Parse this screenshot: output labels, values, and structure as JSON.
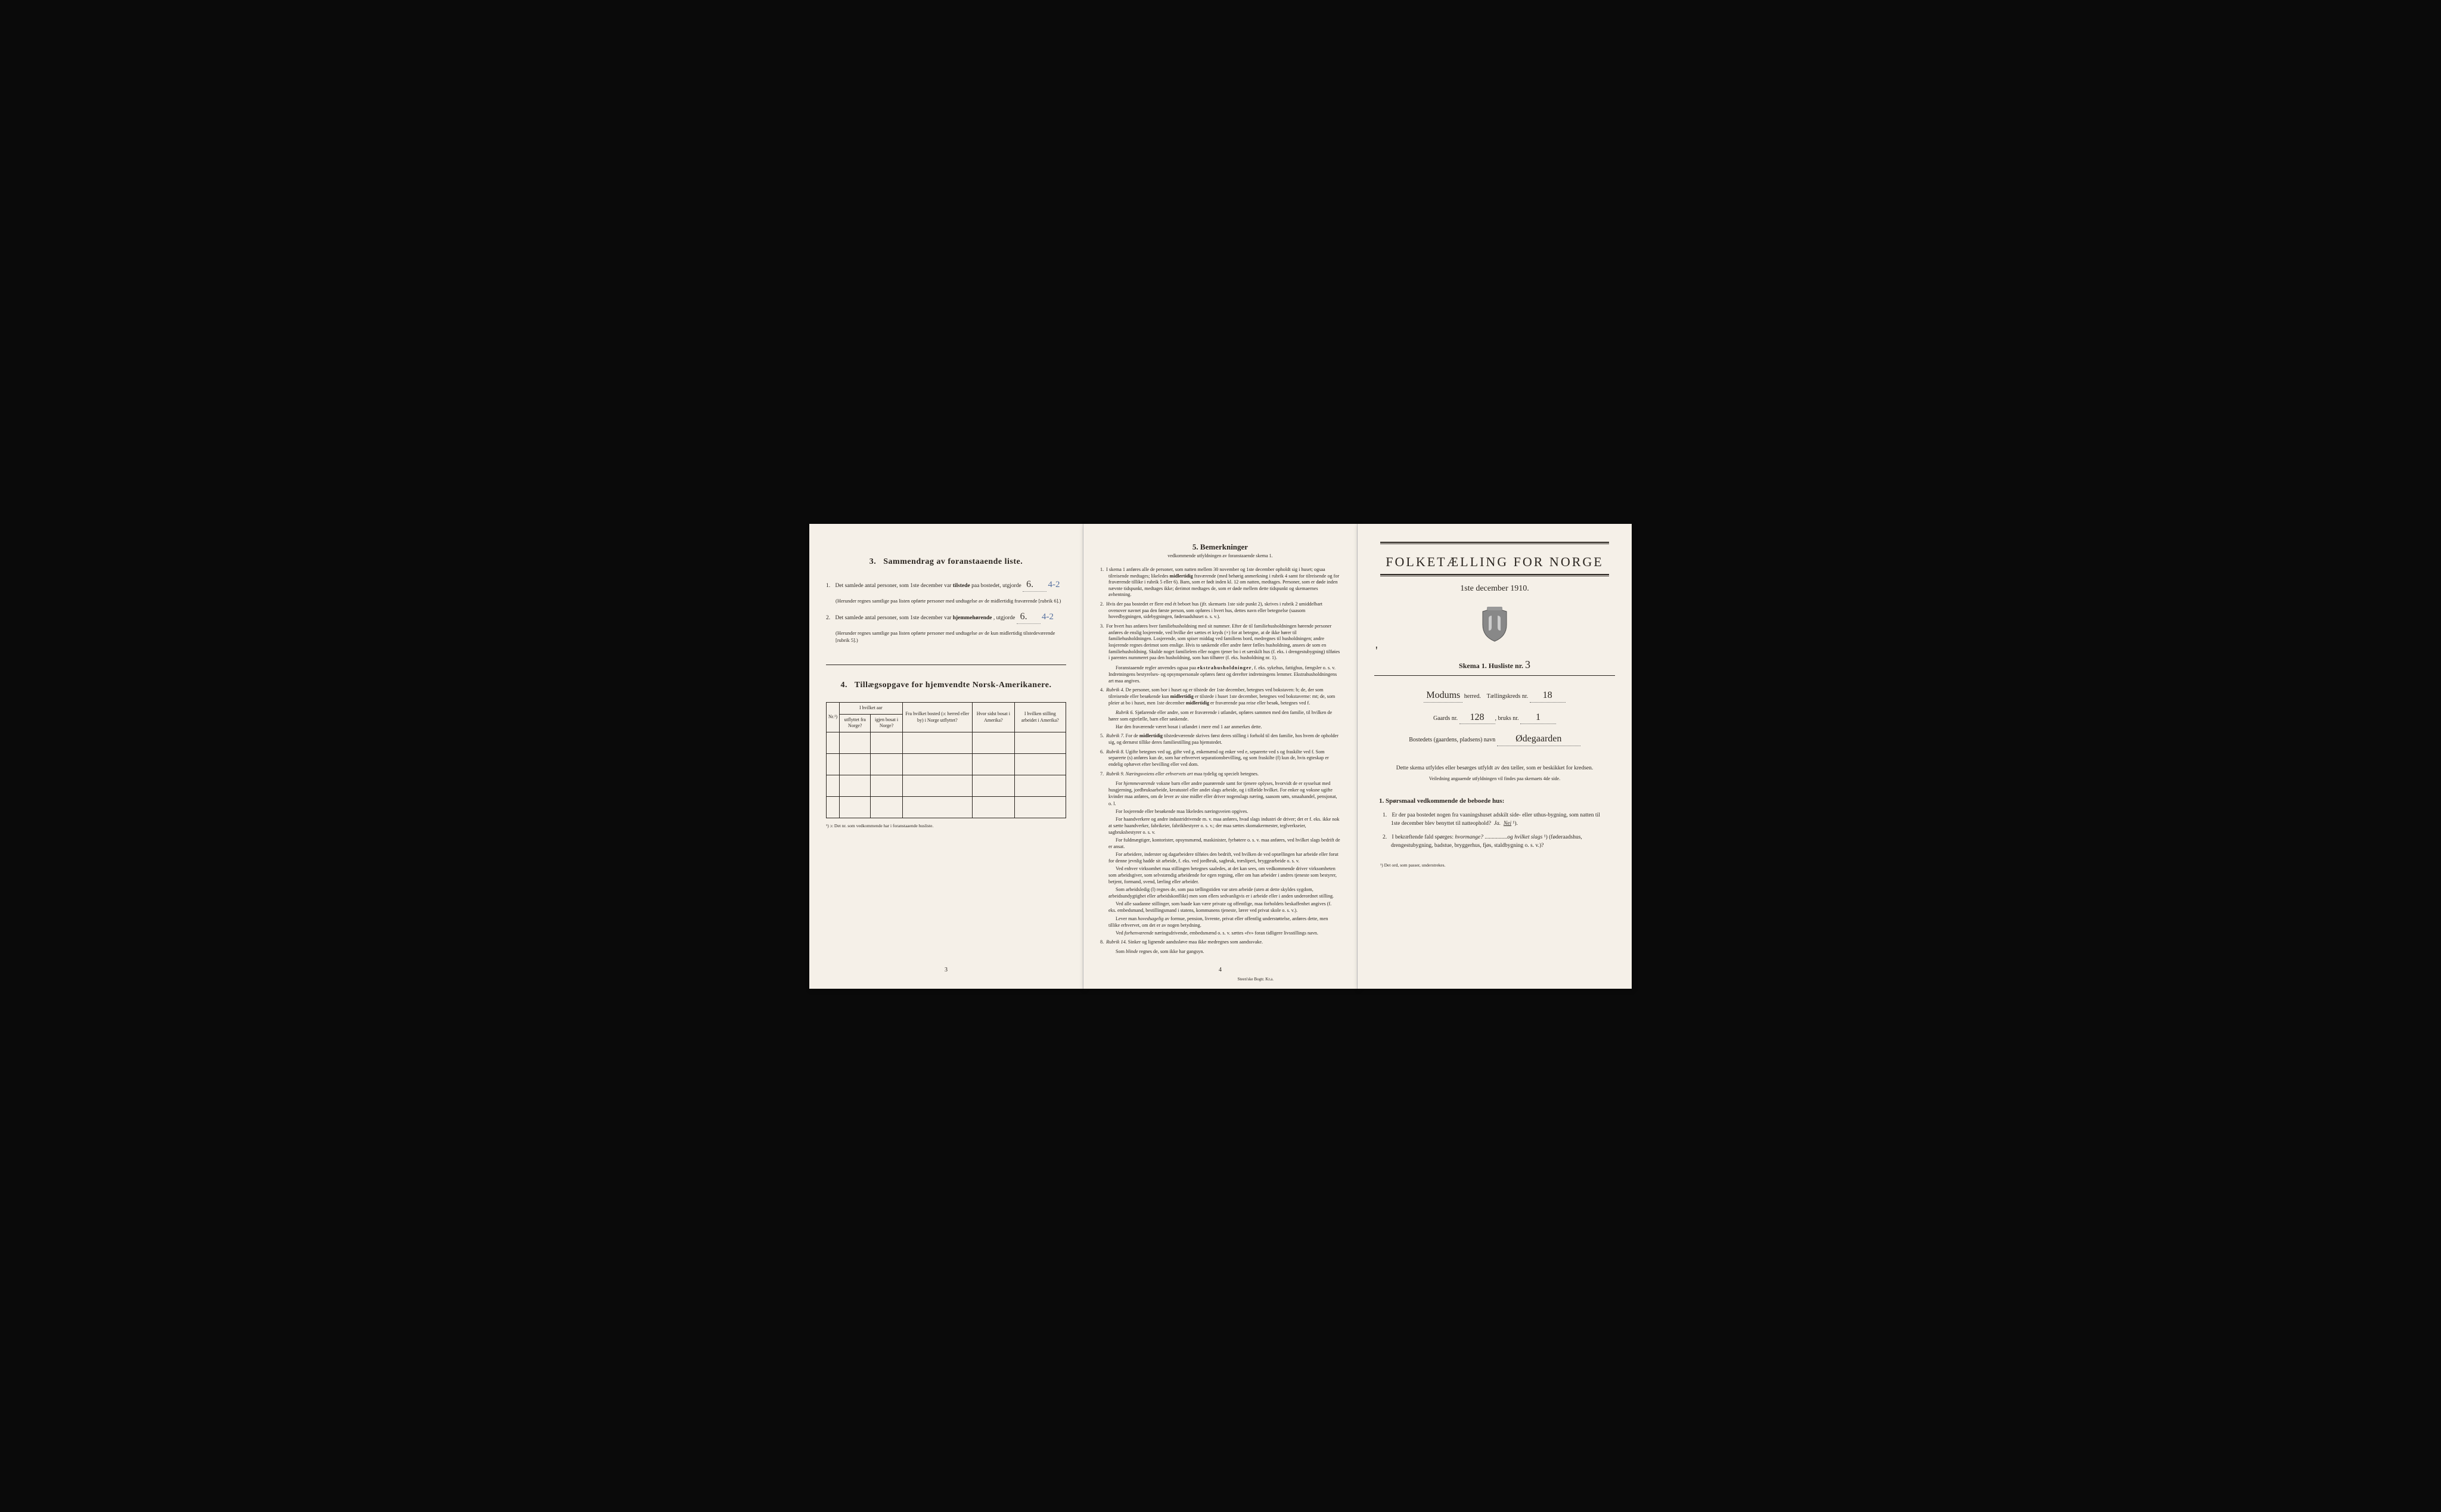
{
  "page_left": {
    "section3": {
      "title_num": "3.",
      "title": "Sammendrag av foranstaaende liste.",
      "item1_num": "1.",
      "item1_text_a": "Det samlede antal personer, som 1ste december var",
      "item1_text_b": "tilstede",
      "item1_text_c": "paa bostedet, utgjorde",
      "item1_value": "6.",
      "item1_blue": "4-2",
      "item1_note": "(Herunder regnes samtlige paa listen opførte personer med undtagelse av de midlertidig fraværende [rubrik 6].)",
      "item2_num": "2.",
      "item2_text_a": "Det samlede antal personer, som 1ste december var",
      "item2_text_b": "hjemmehørende",
      "item2_text_c": ", utgjorde",
      "item2_value": "6.",
      "item2_blue": "4-2",
      "item2_note": "(Herunder regnes samtlige paa listen opførte personer med undtagelse av de kun midlertidig tilstedeværende [rubrik 5].)"
    },
    "section4": {
      "title_num": "4.",
      "title": "Tillægsopgave for hjemvendte Norsk-Amerikanere.",
      "headers": {
        "nr": "Nr.¹)",
        "aar": "I hvilket aar",
        "aar_sub1": "utflyttet fra Norge?",
        "aar_sub2": "igjen bosat i Norge?",
        "bosted": "Fra hvilket bosted (ɔ: herred eller by) i Norge utflyttet?",
        "sidst": "Hvor sidst bosat i Amerika?",
        "stilling": "I hvilken stilling arbeidet i Amerika?"
      },
      "footnote": "¹) ɔ: Det nr. som vedkommende har i foranstaaende husliste."
    },
    "page_num": "3"
  },
  "page_middle": {
    "title_num": "5.",
    "title": "Bemerkninger",
    "subtitle": "vedkommende utfyldningen av foranstaaende skema 1.",
    "items": [
      {
        "n": "1.",
        "text": "I skema 1 anføres alle de personer, som natten mellem 30 november og 1ste december opholdt sig i huset; ogsaa tilreisende medtages; likeledes midlertidig fraværende (med behørig anmerkning i rubrik 4 samt for tilreisende og for fraværende tillike i rubrik 5 eller 6). Barn, som er født inden kl. 12 om natten, medtages. Personer, som er døde inden nævnte tidspunkt, medtages ikke; derimot medtages de, som er døde mellem dette tidspunkt og skemaernes avhentning."
      },
      {
        "n": "2.",
        "text": "Hvis der paa bostedet er flere end ét beboet hus (jfr. skemaets 1ste side punkt 2), skrives i rubrik 2 umiddelbart ovenover navnet paa den første person, som opføres i hvert hus, dettes navn eller betegnelse (saasom hovedbygningen, sidebygningen, føderaadshuset o. s. v.)."
      },
      {
        "n": "3.",
        "text": "For hvert hus anføres hver familiehusholdning med sit nummer. Efter de til familiehusholdningen hørende personer anføres de enslig losjerende, ved hvilke der sættes et kryds (×) for at betegne, at de ikke hører til familiehusholdningen. Losjerende, som spiser middag ved familiens bord, medregnes til husholdningen; andre losjerende regnes derimot som enslige. Hvis to søskende eller andre fører fælles husholdning, ansees de som en familiehusholdning. Skulde noget familielem eller nogen tjener bo i et særskilt hus (f. eks. i drengestubygning) tilføies i parentes nummeret paa den husholdning, som han tilhører (f. eks. husholdning nr. 1)."
      },
      {
        "n": "",
        "text": "Foranstaaende regler anvendes ogsaa paa ekstrahusholdninger, f. eks. sykehus, fattighus, fængsler o. s. v. Indretningens bestyrelses- og opsynspersonale opføres først og derefter indretningens lemmer. Ekstrahusholdningens art maa angives."
      },
      {
        "n": "4.",
        "text": "Rubrik 4. De personer, som bor i huset og er tilstede der 1ste december, betegnes ved bokstaven: b; de, der som tilreisende eller besøkende kun midlertidig er tilstede i huset 1ste december, betegnes ved bokstaverne: mt; de, som pleier at bo i huset, men 1ste december midlertidig er fraværende paa reise eller besøk, betegnes ved f."
      },
      {
        "n": "",
        "text": "Rubrik 6. Sjøfarende eller andre, som er fraværende i utlandet, opføres sammen med den familie, til hvilken de hører som egtefælle, barn eller søskende."
      },
      {
        "n": "",
        "text": "Har den fraværende været bosat i utlandet i mere end 1 aar anmerkes dette."
      },
      {
        "n": "5.",
        "text": "Rubrik 7. For de midlertidig tilstedeværende skrives først deres stilling i forhold til den familie, hos hvem de opholder sig, og dernæst tillike deres familiestilling paa hjemstedet."
      },
      {
        "n": "6.",
        "text": "Rubrik 8. Ugifte betegnes ved ug, gifte ved g, enkemænd og enker ved e, separerte ved s og fraskilte ved f. Som separerte (s) anføres kun de, som har erhvervet separationsbevilling, og som fraskilte (f) kun de, hvis egteskap er endelig ophævet efter bevilling eller ved dom."
      },
      {
        "n": "7.",
        "text": "Rubrik 9. Næringsveiens eller erhvervets art maa tydelig og specielt betegnes."
      },
      {
        "n": "",
        "text": "For hjemmeværende voksne barn eller andre paarørende samt for tjenere oplyses, hvorvidt de er sysselsat med husgjerning, jordbruksarbeide, kreatustel eller andet slags arbeide, og i tilfælde hvilket. For enker og voksne ugifte kvinder maa anføres, om de lever av sine midler eller driver nogenslags næring, saasom søm, smaahandel, pensjonat, o. l."
      },
      {
        "n": "",
        "text": "For losjerende eller besøkende maa likeledes næringsveien opgives."
      },
      {
        "n": "",
        "text": "For haandverkere og andre industridrivende m. v. maa anføres, hvad slags industri de driver; det er f. eks. ikke nok at sætte haandverker, fabrikeier, fabrikbestyrer o. s. v.; der maa sættes skomakermester, teglverkseier, sagbruksbestyrer o. s. v."
      },
      {
        "n": "",
        "text": "For fuldmægtiger, kontorister, opsynsmænd, maskinister, fyrbøtere o. s. v. maa anføres, ved hvilket slags bedrift de er ansat."
      },
      {
        "n": "",
        "text": "For arbeidere, inderster og dagarbeidere tilføies den bedrift, ved hvilken de ved optællingen har arbeide eller forut for denne jevnlig hadde sit arbeide, f. eks. ved jordbruk, sagbruk, træsliperi, bryggearbeide o. s. v."
      },
      {
        "n": "",
        "text": "Ved enhver virksomhet maa stillingen betegnes saaledes, at det kan sees, om vedkommende driver virksomheten som arbeidsgiver, som selvstændig arbeidende for egen regning, eller om han arbeider i andres tjeneste som bestyrer, betjent, formand, svend, lærling eller arbeider."
      },
      {
        "n": "",
        "text": "Som arbeidsledig (l) regnes de, som paa tællingstiden var uten arbeide (uten at dette skyldes sygdom, arbeidsundygtighet eller arbeidskonflikt) men som ellers sedvanligvis er i arbeide eller i anden underordnet stilling."
      },
      {
        "n": "",
        "text": "Ved alle saadanne stillinger, som baade kan være private og offentlige, maa forholdets beskaffenhet angives (f. eks. embedsmand, bestillingsmand i statens, kommunens tjeneste, lærer ved privat skole o. s. v.)."
      },
      {
        "n": "",
        "text": "Lever man hovedsagelig av formue, pension, livrente, privat eller offentlig understøttelse, anføres dette, men tillike erhvervet, om det er av nogen betydning."
      },
      {
        "n": "",
        "text": "Ved forhenværende næringsdrivende, embedsmænd o. s. v. sættes «fv» foran tidligere livsstillings navn."
      },
      {
        "n": "8.",
        "text": "Rubrik 14. Sinker og lignende aandssløve maa ikke medregnes som aandssvake."
      },
      {
        "n": "",
        "text": "Som blinde regnes de, som ikke har gangsyn."
      }
    ],
    "page_num": "4",
    "printer": "Steen'ske Bogtr. Kr.a."
  },
  "page_right": {
    "title": "FOLKETÆLLING FOR NORGE",
    "date": "1ste december 1910.",
    "skema_label": "Skema 1.  Husliste nr.",
    "skema_value": "3",
    "herred_value": "Modums",
    "herred_label": "herred.",
    "kreds_label": "Tællingskreds nr.",
    "kreds_value": "18",
    "gaards_label": "Gaards nr.",
    "gaards_value": "128",
    "bruks_label": "bruks nr.",
    "bruks_value": "1",
    "bosted_label": "Bostedets (gaardens, pladsens) navn",
    "bosted_value": "Ødegaarden",
    "instruct": "Dette skema utfyldes eller besørges utfyldt av den tæller, som er beskikket for kredsen.",
    "instruct_sub": "Veiledning angaaende utfyldningen vil findes paa skemaets 4de side.",
    "q_heading": "1. Spørsmaal vedkommende de beboede hus:",
    "q1_num": "1.",
    "q1_text": "Er der paa bostedet nogen fra vaaningshuset adskilt side- eller uthus-bygning, som natten til 1ste december blev benyttet til natteophold?",
    "q1_ja": "Ja.",
    "q1_nei": "Nei",
    "q1_sup": "¹).",
    "q2_num": "2.",
    "q2_text_a": "I bekræftende fald spørges:",
    "q2_text_b": "hvormange?",
    "q2_text_c": "og hvilket slags",
    "q2_text_d": "¹) (føderaadshus, drengestubygning, badstue, bryggerhus, fjøs, staldbygning o. s. v.)?",
    "footnote": "¹) Det ord, som passer, understrekes."
  },
  "colors": {
    "paper": "#f5f0e8",
    "ink": "#2a2520",
    "handwriting": "#3a3530",
    "blue_pencil": "#5570a0",
    "background": "#0a0a0a"
  }
}
